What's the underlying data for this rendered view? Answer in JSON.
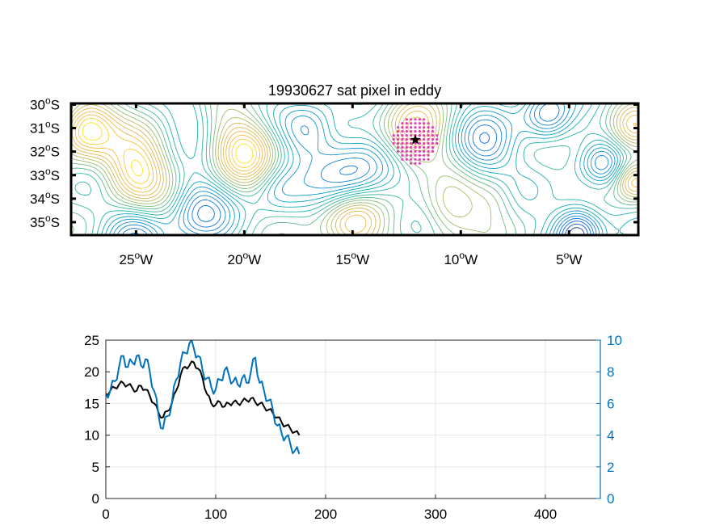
{
  "chart_data": [
    {
      "type": "contour",
      "title": "19930627 sat pixel in eddy",
      "x_ticks": [
        {
          "value": -25,
          "label": "25",
          "hemi": "W"
        },
        {
          "value": -20,
          "label": "20",
          "hemi": "W"
        },
        {
          "value": -15,
          "label": "15",
          "hemi": "W"
        },
        {
          "value": -10,
          "label": "10",
          "hemi": "W"
        },
        {
          "value": -5,
          "label": "5",
          "hemi": "W"
        }
      ],
      "y_ticks": [
        {
          "value": -30,
          "label": "30",
          "hemi": "S"
        },
        {
          "value": -31,
          "label": "31",
          "hemi": "S"
        },
        {
          "value": -32,
          "label": "32",
          "hemi": "S"
        },
        {
          "value": -33,
          "label": "33",
          "hemi": "S"
        },
        {
          "value": -34,
          "label": "34",
          "hemi": "S"
        },
        {
          "value": -35,
          "label": "35",
          "hemi": "S"
        }
      ],
      "degree_symbol": "o",
      "xlim": [
        -28,
        -1.8
      ],
      "ylim": [
        -35.55,
        -29.95
      ],
      "eddy_center": {
        "lon": -12.1,
        "lat": -31.5
      },
      "eddy_pixel_radius_deg": 1.0,
      "eddy_marker": "star",
      "features": [
        {
          "lon": -27.3,
          "lat": -31.0,
          "amp": 1.0,
          "sigma": 0.9
        },
        {
          "lon": -25.0,
          "lat": -32.8,
          "amp": 0.95,
          "sigma": 1.1
        },
        {
          "lon": -20.0,
          "lat": -31.9,
          "amp": 0.9,
          "sigma": 1.0
        },
        {
          "lon": -15.0,
          "lat": -35.1,
          "amp": 0.85,
          "sigma": 1.0
        },
        {
          "lon": -12.2,
          "lat": -31.3,
          "amp": 0.8,
          "sigma": 1.0
        },
        {
          "lon": -10.5,
          "lat": -34.5,
          "amp": 0.5,
          "sigma": 0.9
        },
        {
          "lon": -2.0,
          "lat": -31.0,
          "amp": 0.6,
          "sigma": 0.7
        },
        {
          "lon": -2.0,
          "lat": -33.3,
          "amp": 0.7,
          "sigma": 0.6
        },
        {
          "lon": -15.0,
          "lat": -33.0,
          "amp": -0.7,
          "sigma": 1.2
        },
        {
          "lon": -22.0,
          "lat": -34.5,
          "amp": -0.6,
          "sigma": 1.0
        },
        {
          "lon": -17.0,
          "lat": -31.2,
          "amp": -0.5,
          "sigma": 0.9
        },
        {
          "lon": -9.0,
          "lat": -31.8,
          "amp": -0.6,
          "sigma": 1.0
        },
        {
          "lon": -6.0,
          "lat": -30.5,
          "amp": -0.7,
          "sigma": 0.8
        },
        {
          "lon": -4.6,
          "lat": -35.4,
          "amp": -1.0,
          "sigma": 0.8
        },
        {
          "lon": -25.0,
          "lat": -35.5,
          "amp": -0.6,
          "sigma": 1.0
        },
        {
          "lon": -3.5,
          "lat": -32.5,
          "amp": -0.4,
          "sigma": 0.6
        },
        {
          "lon": -22.5,
          "lat": -30.3,
          "amp": -0.3,
          "sigma": 0.8
        },
        {
          "lon": -8.5,
          "lat": -34.0,
          "amp": 0.3,
          "sigma": 0.8
        },
        {
          "lon": -18.5,
          "lat": -33.5,
          "amp": -0.3,
          "sigma": 0.8
        }
      ]
    },
    {
      "type": "line",
      "xlim": [
        0,
        450
      ],
      "ylim_left": [
        0,
        25
      ],
      "ylim_right": [
        0,
        10
      ],
      "x_ticks": [
        0,
        100,
        200,
        300,
        400
      ],
      "y_ticks_left": [
        0,
        5,
        10,
        15,
        20,
        25
      ],
      "y_ticks_right": [
        0,
        2,
        4,
        6,
        8,
        10
      ],
      "grid": true,
      "series": [
        {
          "axis": "left",
          "color": "#000000",
          "x": [
            0,
            4,
            8,
            12,
            16,
            20,
            24,
            28,
            32,
            36,
            40,
            44,
            48,
            52,
            56,
            60,
            64,
            68,
            72,
            76,
            80,
            84,
            88,
            92,
            96,
            100,
            104,
            108,
            112,
            116,
            120,
            124,
            128,
            132,
            136,
            140,
            144,
            148,
            152,
            156,
            160,
            164,
            168,
            172,
            176
          ],
          "values": [
            16.5,
            17.0,
            17.5,
            18.0,
            18.2,
            17.9,
            17.5,
            17.0,
            17.8,
            17.2,
            16.2,
            15.0,
            13.5,
            12.8,
            13.8,
            15.0,
            17.0,
            19.5,
            20.8,
            21.0,
            21.5,
            20.5,
            19.0,
            16.5,
            15.0,
            14.8,
            15.2,
            14.5,
            15.0,
            15.2,
            15.0,
            15.3,
            15.5,
            15.8,
            15.2,
            15.0,
            14.5,
            14.0,
            13.5,
            12.8,
            12.0,
            11.5,
            11.0,
            10.5,
            10.0
          ]
        },
        {
          "axis": "right",
          "color": "#0072BD",
          "x": [
            0,
            4,
            8,
            12,
            16,
            20,
            24,
            28,
            32,
            36,
            40,
            44,
            48,
            52,
            56,
            60,
            64,
            68,
            72,
            76,
            80,
            84,
            88,
            92,
            96,
            100,
            104,
            108,
            112,
            116,
            120,
            124,
            128,
            132,
            136,
            140,
            144,
            148,
            152,
            156,
            160,
            164,
            168,
            172,
            176
          ],
          "values": [
            6.6,
            6.8,
            7.4,
            8.3,
            9.0,
            8.3,
            8.6,
            9.0,
            8.4,
            8.8,
            8.0,
            6.8,
            5.2,
            4.4,
            5.2,
            6.0,
            7.5,
            8.6,
            9.2,
            9.8,
            9.5,
            9.0,
            8.1,
            7.6,
            7.0,
            6.9,
            7.5,
            8.1,
            7.8,
            7.4,
            7.2,
            7.6,
            7.3,
            8.0,
            8.9,
            7.3,
            6.8,
            6.2,
            5.6,
            4.6,
            4.1,
            3.9,
            3.4,
            3.0,
            2.8
          ]
        }
      ]
    }
  ]
}
